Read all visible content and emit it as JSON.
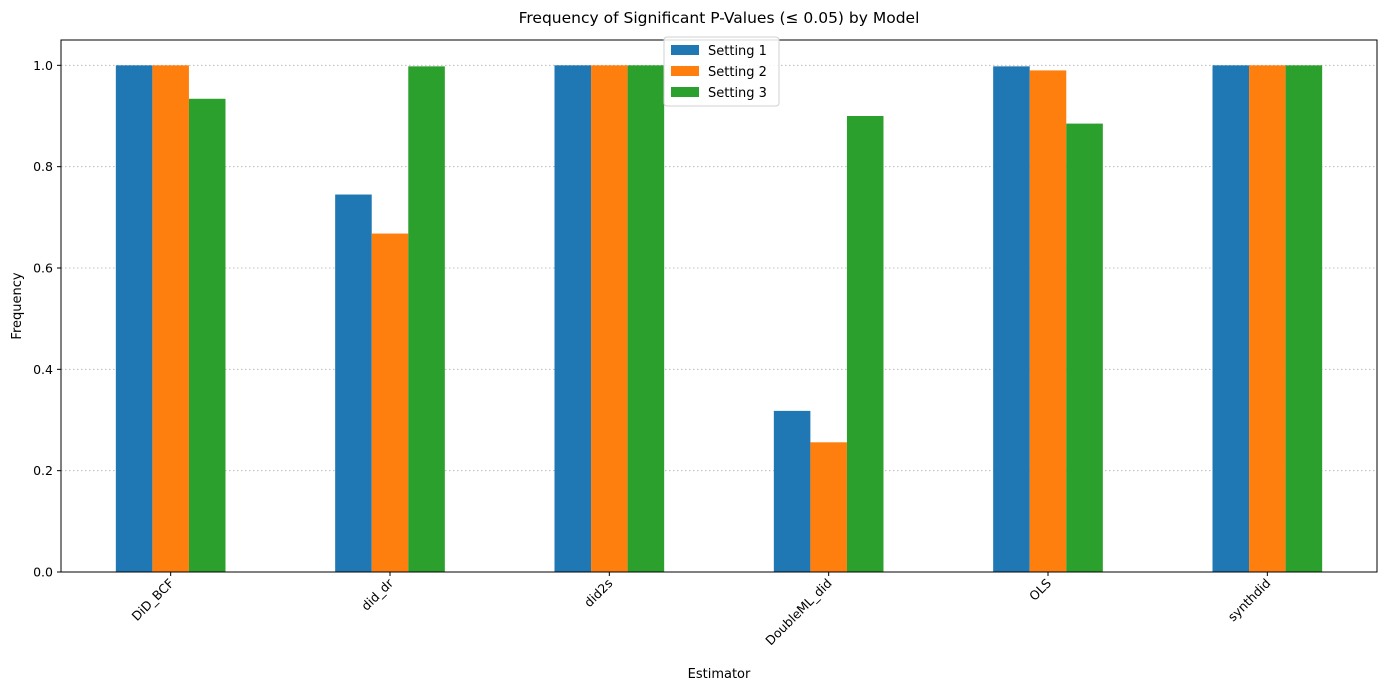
{
  "chart_data": {
    "type": "bar",
    "title": "Frequency of Significant P-Values (≤ 0.05) by Model",
    "xlabel": "Estimator",
    "ylabel": "Frequency",
    "categories": [
      "DiD_BCF",
      "did_dr",
      "did2s",
      "DoubleML_did",
      "OLS",
      "synthdid"
    ],
    "series": [
      {
        "name": "Setting 1",
        "color": "#1f77b4",
        "values": [
          1.0,
          0.745,
          1.0,
          0.318,
          0.998,
          1.0
        ]
      },
      {
        "name": "Setting 2",
        "color": "#ff7f0e",
        "values": [
          1.0,
          0.668,
          1.0,
          0.256,
          0.99,
          1.0
        ]
      },
      {
        "name": "Setting 3",
        "color": "#2ca02c",
        "values": [
          0.934,
          0.998,
          1.0,
          0.9,
          0.885,
          1.0
        ]
      }
    ],
    "ylim": [
      0,
      1.05
    ],
    "yticks": [
      0.0,
      0.2,
      0.4,
      0.6,
      0.8,
      1.0
    ],
    "ytick_labels": [
      "0.0",
      "0.2",
      "0.4",
      "0.6",
      "0.8",
      "1.0"
    ],
    "grid": "y-dotted",
    "legend_position": "upper-center"
  }
}
